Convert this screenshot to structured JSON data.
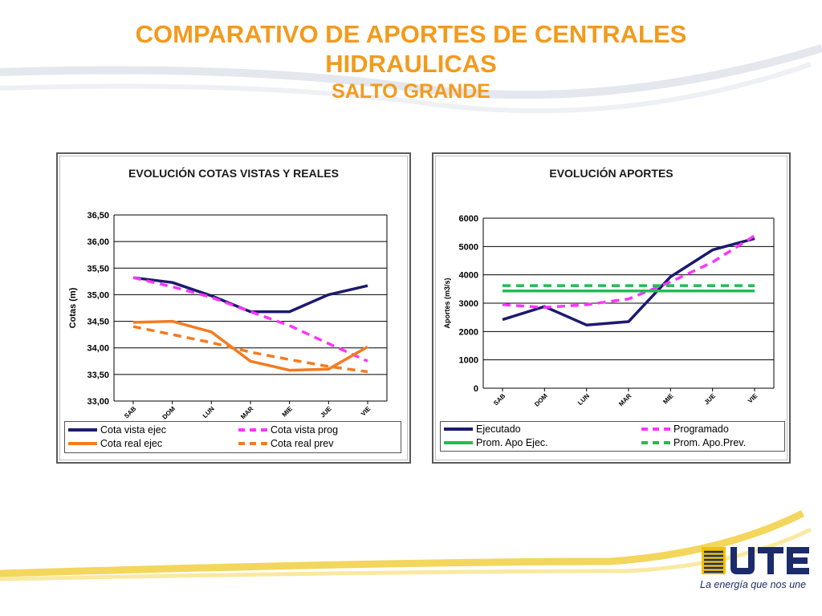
{
  "header": {
    "title_line1": "COMPARATIVO DE APORTES DE CENTRALES",
    "title_line2": "HIDRAULICAS",
    "subtitle": "SALTO GRANDE"
  },
  "colors": {
    "title": "#f39a1c",
    "navy": "#1c1a6e",
    "magenta": "#ff33ff",
    "orange": "#f47b20",
    "green": "#22bb55"
  },
  "chart_data": [
    {
      "type": "line",
      "title": "EVOLUCIÓN  COTAS VISTAS Y REALES",
      "ylabel": "Cotas (m)",
      "xlabel": "",
      "categories": [
        "SAB",
        "DOM",
        "LUN",
        "MAR",
        "MIE",
        "JUE",
        "VIE"
      ],
      "ylim": [
        33.0,
        36.5
      ],
      "yticks": [
        "33,00",
        "33,50",
        "34,00",
        "34,50",
        "35,00",
        "35,50",
        "36,00",
        "36,50"
      ],
      "grid": true,
      "legend_position": "bottom",
      "series": [
        {
          "name": "Cota vista ejec",
          "values": [
            35.32,
            35.23,
            34.98,
            34.68,
            34.68,
            35.0,
            35.17
          ],
          "color": "#1c1a6e",
          "dashed": false
        },
        {
          "name": "Cota vista prog",
          "values": [
            35.32,
            35.15,
            34.95,
            34.68,
            34.42,
            34.08,
            33.75
          ],
          "color": "#ff33ff",
          "dashed": true
        },
        {
          "name": "Cota real ejec",
          "values": [
            34.48,
            34.5,
            34.3,
            33.75,
            33.58,
            33.6,
            34.02
          ],
          "color": "#f47b20",
          "dashed": false
        },
        {
          "name": "Cota real prev",
          "values": [
            34.4,
            34.25,
            34.1,
            33.92,
            33.78,
            33.65,
            33.55
          ],
          "color": "#f47b20",
          "dashed": true
        }
      ]
    },
    {
      "type": "line",
      "title": "EVOLUCIÓN  APORTES",
      "ylabel": "Aportes (m3/s)",
      "xlabel": "",
      "categories": [
        "SAB",
        "DOM",
        "LUN",
        "MAR",
        "MIE",
        "JUE",
        "VIE"
      ],
      "ylim": [
        0,
        6000
      ],
      "yticks": [
        "0",
        "1000",
        "2000",
        "3000",
        "4000",
        "5000",
        "6000"
      ],
      "grid": true,
      "legend_position": "bottom",
      "series": [
        {
          "name": "Ejecutado",
          "values": [
            2420,
            2880,
            2230,
            2350,
            3930,
            4880,
            5280
          ],
          "color": "#1c1a6e",
          "dashed": false
        },
        {
          "name": "Programado",
          "values": [
            2950,
            2850,
            2950,
            3150,
            3750,
            4450,
            5380
          ],
          "color": "#ff33ff",
          "dashed": true
        },
        {
          "name": "Prom. Apo Ejec.",
          "values": [
            3430,
            3430,
            3430,
            3430,
            3430,
            3430,
            3430
          ],
          "color": "#22bb55",
          "dashed": false
        },
        {
          "name": "Prom. Apo.Prev.",
          "values": [
            3620,
            3620,
            3620,
            3620,
            3620,
            3620,
            3620
          ],
          "color": "#22bb55",
          "dashed": true
        }
      ]
    }
  ],
  "logo": {
    "name": "ute-logo-icon",
    "tagline": "La energía que nos une"
  }
}
